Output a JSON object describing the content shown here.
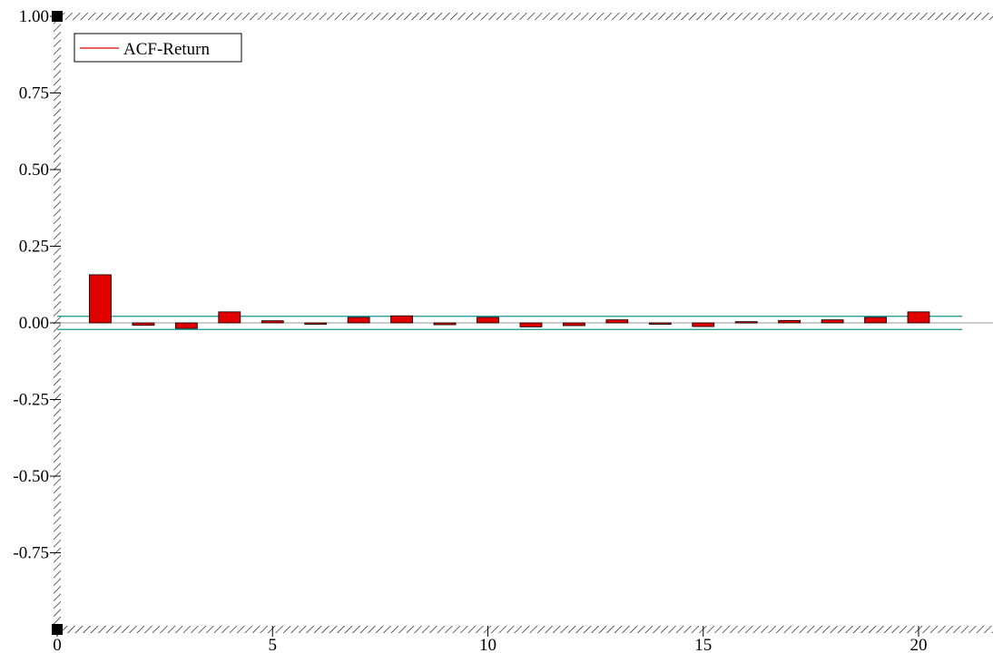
{
  "chart_data": {
    "type": "bar",
    "legend": [
      {
        "label": "ACF-Return",
        "color": "#e00000"
      }
    ],
    "legend_position": "top-left",
    "series": [
      {
        "name": "ACF-Return",
        "color": "#e00000",
        "x": [
          1,
          2,
          3,
          4,
          5,
          6,
          7,
          8,
          9,
          10,
          11,
          12,
          13,
          14,
          15,
          16,
          17,
          18,
          19,
          20
        ],
        "values": [
          0.157,
          -0.008,
          -0.018,
          0.036,
          0.007,
          -0.003,
          0.018,
          0.023,
          -0.006,
          0.018,
          -0.013,
          -0.009,
          0.01,
          -0.003,
          -0.012,
          0.004,
          0.008,
          0.01,
          0.018,
          0.036
        ]
      }
    ],
    "confidence_bands": {
      "upper": 0.0215,
      "lower": -0.0215,
      "color": "#1a9090"
    },
    "xlim": [
      0,
      21
    ],
    "ylim": [
      -1.0,
      1.0
    ],
    "x_ticks": [
      0,
      5,
      10,
      15,
      20
    ],
    "x_tick_labels": [
      "0",
      "5",
      "10",
      "15",
      "20"
    ],
    "y_ticks": [
      1.0,
      0.75,
      0.5,
      0.25,
      0.0,
      -0.25,
      -0.5,
      -0.75
    ],
    "y_tick_labels": [
      "1.00",
      "0.75",
      "0.50",
      "0.25",
      "0.00",
      "-0.25",
      "-0.50",
      "-0.75"
    ],
    "title": "",
    "xlabel": "",
    "ylabel": "",
    "grid": false
  }
}
